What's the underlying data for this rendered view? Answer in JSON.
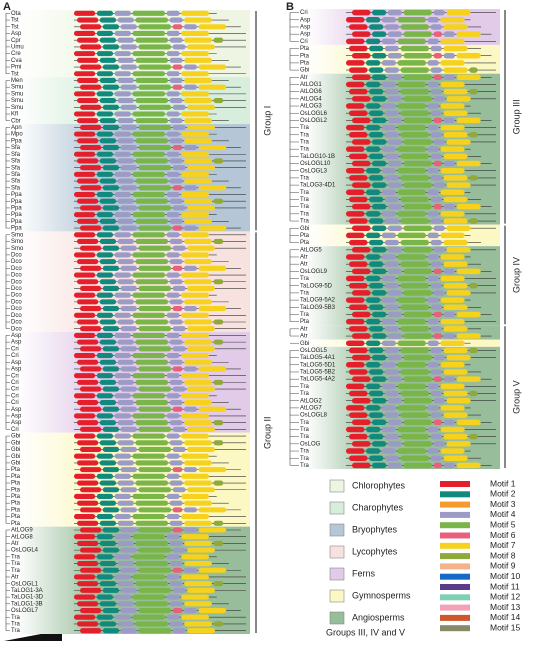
{
  "panels": [
    {
      "label": "A",
      "groups": [
        {
          "label": "Group I",
          "sections": [
            {
              "color": "#eef6e3",
              "leaves": [
                "Ota",
                "Tst",
                "Tst",
                "Asp",
                "Cpr",
                "Umu",
                "Cre",
                "Cva",
                "Pmi",
                "Tst"
              ]
            },
            {
              "color": "#d6eedb",
              "leaves": [
                "Men",
                "Smu",
                "Smu",
                "Smu",
                "Smu",
                "Kfl",
                "Cbr"
              ]
            },
            {
              "color": "#b5c7d6",
              "leaves": [
                "Apn",
                "Mpo",
                "Ppa",
                "Sfa",
                "Sfa",
                "Sfa",
                "Sfa",
                "Sfa",
                "Sfa",
                "Sfa",
                "Ppa",
                "Ppa",
                "Ppa",
                "Ppa",
                "Ppa",
                "Ppa"
              ]
            }
          ]
        },
        {
          "label": "Group II",
          "sections": [
            {
              "color": "#f8e2df",
              "leaves": [
                "Smo",
                "Smo",
                "Smo",
                "Dco",
                "Dco",
                "Dco",
                "Dco",
                "Dco",
                "Dco",
                "Dco",
                "Dco",
                "Dco",
                "Dco",
                "Dco",
                "Dco"
              ]
            },
            {
              "color": "#e1cbe8",
              "leaves": [
                "Asp",
                "Asp",
                "Cri",
                "Cri",
                "Asp",
                "Asp",
                "Cri",
                "Cri",
                "Cri",
                "Cri",
                "Cri",
                "Asp",
                "Asp",
                "Asp",
                "Cri"
              ]
            },
            {
              "color": "#fcf8c4",
              "leaves": [
                "Gbi",
                "Gbi",
                "Gbi",
                "Gbi",
                "Gbi",
                "Pta",
                "Pta",
                "Pta",
                "Pta",
                "Pta",
                "Pta",
                "Pta",
                "Pta",
                "Pta"
              ]
            },
            {
              "color": "#98bd9b",
              "leaves": [
                "AtLOG9",
                "AtLOG8",
                "Atr",
                "OsLOGL4",
                "Tra",
                "Tra",
                "Tra",
                "Atr",
                "OsLOGL1",
                "TaLOG1-3A",
                "TaLOG1-3D",
                "TaLOG1-3B",
                "OsLOGL7",
                "Tra",
                "Tra",
                "Tra"
              ]
            }
          ]
        }
      ]
    },
    {
      "label": "B",
      "groups": [
        {
          "label": "Group III",
          "sections": [
            {
              "color": "#e1cbe8",
              "leaves": [
                "Cri",
                "Asp",
                "Asp",
                "Asp",
                "Cri"
              ]
            },
            {
              "color": "#fcf8c4",
              "leaves": [
                "Pta",
                "Pta",
                "Pta",
                "Gbi"
              ]
            },
            {
              "color": "#98bd9b",
              "leaves": [
                "Atr",
                "AtLOG1",
                "AtLOG6",
                "AtLOG4",
                "AtLOG3",
                "OsLOGL6",
                "OsLOGL2",
                "Tra",
                "Tra",
                "Tra",
                "Tra",
                "TaLOG10-1B",
                "OsLOGL10",
                "OsLOGL3",
                "Tra",
                "TaLOG3-4D1",
                "Tra",
                "Tra",
                "Tra",
                "Tra",
                "Tra"
              ]
            }
          ]
        },
        {
          "label": "Group IV",
          "sections": [
            {
              "color": "#fcf8c4",
              "leaves": [
                "Gbi",
                "Pta",
                "Pta"
              ]
            },
            {
              "color": "#98bd9b",
              "leaves": [
                "AtLOG5",
                "Atr",
                "Atr",
                "OsLOGL9",
                "Tra",
                "TaLOG9-5D",
                "Tra",
                "TaLOG9-5A2",
                "TaLOG9-5B3",
                "Tra",
                "Pta"
              ]
            }
          ]
        },
        {
          "label": "Group V",
          "sections": [
            {
              "color": "#98bd9b",
              "leaves": [
                "Atr",
                "Atr"
              ]
            },
            {
              "color": "#fcf8c4",
              "leaves": [
                "Gbi"
              ]
            },
            {
              "color": "#98bd9b",
              "leaves": [
                "OsLOGL5",
                "TaLOG5-4A1",
                "TaLOG5-5D1",
                "TaLOG5-5B2",
                "TaLOG5-4A2",
                "Tra",
                "Tra",
                "AtLOG2",
                "AtLOG7",
                "OsLOGL8",
                "Tra",
                "Tra",
                "Tra",
                "OsLOG",
                "Tra",
                "Tra",
                "Tra"
              ]
            }
          ]
        }
      ]
    }
  ],
  "legend": {
    "clades": [
      {
        "name": "Chlorophytes",
        "color": "#eef6e3"
      },
      {
        "name": "Charophytes",
        "color": "#d6eedb"
      },
      {
        "name": "Bryophytes",
        "color": "#b5c7d6"
      },
      {
        "name": "Lycophytes",
        "color": "#f8e2df"
      },
      {
        "name": "Ferns",
        "color": "#e1cbe8"
      },
      {
        "name": "Gymnosperms",
        "color": "#fcf8c4"
      },
      {
        "name": "Angiosperms",
        "color": "#98bd9b"
      }
    ],
    "motifs": [
      {
        "name": "Motif 1",
        "color": "#e41f2b"
      },
      {
        "name": "Motif 2",
        "color": "#12897d"
      },
      {
        "name": "Motif 3",
        "color": "#f59b2b"
      },
      {
        "name": "Motif 4",
        "color": "#9c9bc6"
      },
      {
        "name": "Motif 5",
        "color": "#79b548"
      },
      {
        "name": "Motif 6",
        "color": "#e9607f"
      },
      {
        "name": "Motif 7",
        "color": "#f6d21e"
      },
      {
        "name": "Motif 8",
        "color": "#8fa93a"
      },
      {
        "name": "Motif 9",
        "color": "#f2b38c"
      },
      {
        "name": "Motif 10",
        "color": "#1569c7"
      },
      {
        "name": "Motif 11",
        "color": "#5a3a8b"
      },
      {
        "name": "Motif 12",
        "color": "#80d0b5"
      },
      {
        "name": "Motif 13",
        "color": "#f2a1b6"
      },
      {
        "name": "Motif 14",
        "color": "#d1552a"
      },
      {
        "name": "Motif 15",
        "color": "#8a8a6b"
      }
    ]
  },
  "footer": "Groups III, IV and V"
}
